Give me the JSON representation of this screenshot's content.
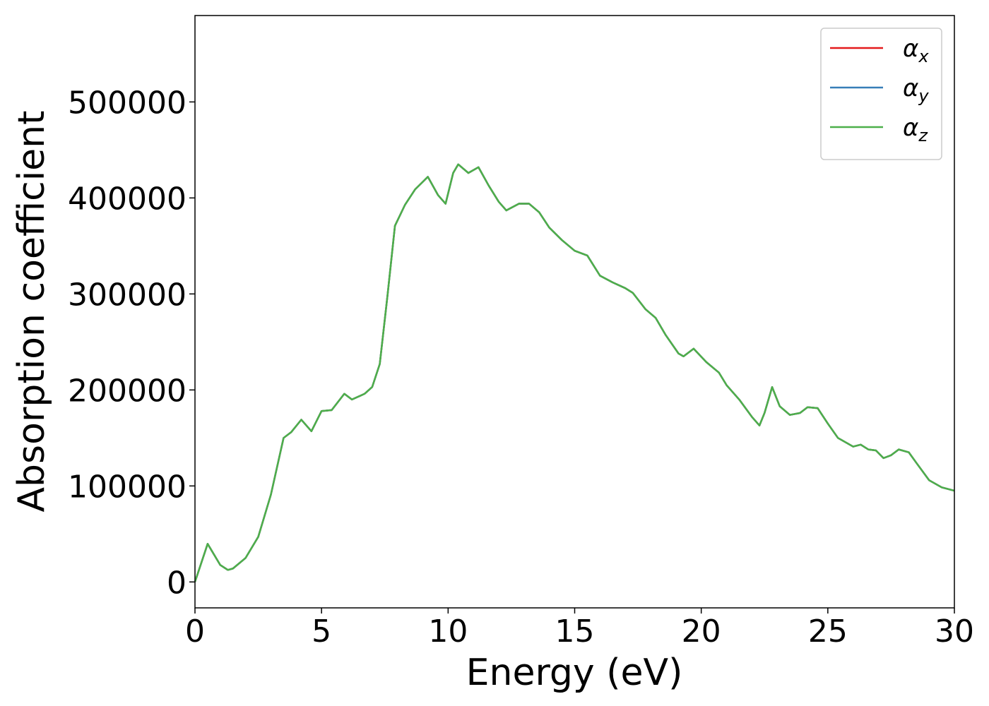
{
  "chart_data": {
    "type": "line",
    "xlabel": "Energy (eV)",
    "ylabel": "Absorption coefficient",
    "xlim": [
      0,
      30
    ],
    "ylim": [
      -27000,
      590000
    ],
    "xticks": [
      0,
      5,
      10,
      15,
      20,
      25,
      30
    ],
    "yticks": [
      0,
      100000,
      200000,
      300000,
      400000,
      500000
    ],
    "legend": "upper right",
    "grid": false,
    "x": [
      0,
      0.5,
      1.0,
      1.3,
      1.5,
      2.0,
      2.5,
      3.0,
      3.5,
      3.8,
      4.2,
      4.6,
      5.0,
      5.4,
      5.9,
      6.2,
      6.7,
      7.0,
      7.3,
      7.6,
      7.9,
      8.3,
      8.7,
      9.2,
      9.6,
      9.9,
      10.2,
      10.4,
      10.8,
      11.2,
      11.6,
      12.0,
      12.3,
      12.8,
      13.2,
      13.6,
      14.0,
      14.5,
      15.0,
      15.5,
      16.0,
      16.5,
      17.0,
      17.3,
      17.8,
      18.2,
      18.6,
      19.1,
      19.3,
      19.7,
      20.2,
      20.7,
      21.0,
      21.5,
      22.0,
      22.3,
      22.5,
      22.8,
      23.1,
      23.5,
      23.9,
      24.2,
      24.6,
      25.0,
      25.4,
      26.0,
      26.3,
      26.6,
      26.9,
      27.2,
      27.5,
      27.8,
      28.2,
      28.5,
      29.0,
      29.5,
      30.0
    ],
    "series": [
      {
        "name": "αx",
        "color": "#e41a1c",
        "values": [
          0,
          39700,
          17600,
          12500,
          14000,
          25000,
          47000,
          91000,
          150000,
          156000,
          169000,
          157000,
          178000,
          179000,
          196000,
          190000,
          196000,
          203000,
          227000,
          297000,
          371000,
          393000,
          409000,
          422000,
          403000,
          394000,
          426000,
          435000,
          426000,
          432000,
          413000,
          396000,
          387000,
          394000,
          394000,
          385000,
          369000,
          356000,
          345000,
          340000,
          319000,
          312000,
          306000,
          301000,
          284000,
          275000,
          257000,
          238000,
          235000,
          243000,
          229000,
          218000,
          205000,
          190000,
          172000,
          163000,
          176000,
          203000,
          183000,
          174000,
          176000,
          182000,
          181000,
          165000,
          150000,
          141000,
          143000,
          138000,
          137000,
          129000,
          132000,
          138000,
          135000,
          124000,
          106000,
          98500,
          95000
        ]
      },
      {
        "name": "αy",
        "color": "#377eb8",
        "values": [
          0,
          39700,
          17600,
          12500,
          14000,
          25000,
          47000,
          91000,
          150000,
          156000,
          169000,
          157000,
          178000,
          179000,
          196000,
          190000,
          196000,
          203000,
          227000,
          297000,
          371000,
          393000,
          409000,
          422000,
          403000,
          394000,
          426000,
          435000,
          426000,
          432000,
          413000,
          396000,
          387000,
          394000,
          394000,
          385000,
          369000,
          356000,
          345000,
          340000,
          319000,
          312000,
          306000,
          301000,
          284000,
          275000,
          257000,
          238000,
          235000,
          243000,
          229000,
          218000,
          205000,
          190000,
          172000,
          163000,
          176000,
          203000,
          183000,
          174000,
          176000,
          182000,
          181000,
          165000,
          150000,
          141000,
          143000,
          138000,
          137000,
          129000,
          132000,
          138000,
          135000,
          124000,
          106000,
          98500,
          95000
        ]
      },
      {
        "name": "αz",
        "color": "#4daf4a",
        "values": [
          0,
          39700,
          17600,
          12500,
          14000,
          25000,
          47000,
          91000,
          150000,
          156000,
          169000,
          157000,
          178000,
          179000,
          196000,
          190000,
          196000,
          203000,
          227000,
          297000,
          371000,
          393000,
          409000,
          422000,
          403000,
          394000,
          426000,
          435000,
          426000,
          432000,
          413000,
          396000,
          387000,
          394000,
          394000,
          385000,
          369000,
          356000,
          345000,
          340000,
          319000,
          312000,
          306000,
          301000,
          284000,
          275000,
          257000,
          238000,
          235000,
          243000,
          229000,
          218000,
          205000,
          190000,
          172000,
          163000,
          176000,
          203000,
          183000,
          174000,
          176000,
          182000,
          181000,
          165000,
          150000,
          141000,
          143000,
          138000,
          137000,
          129000,
          132000,
          138000,
          135000,
          124000,
          106000,
          98500,
          95000
        ]
      }
    ]
  }
}
